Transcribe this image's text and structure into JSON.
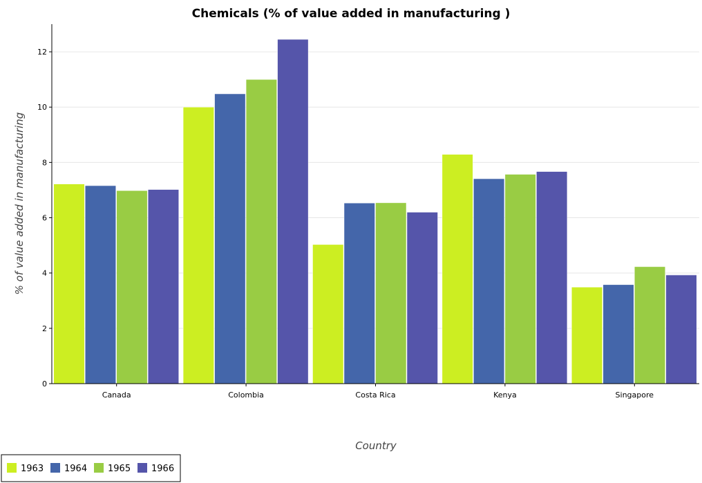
{
  "chart_data": {
    "type": "bar",
    "title": "Chemicals (% of value added in manufacturing )",
    "xlabel": "Country",
    "ylabel": "% of value added in manufacturing",
    "categories": [
      "Canada",
      "Colombia",
      "Costa Rica",
      "Kenya",
      "Singapore"
    ],
    "series": [
      {
        "name": "1963",
        "color": "#ccee22",
        "values": [
          7.22,
          10.0,
          5.03,
          8.29,
          3.49
        ]
      },
      {
        "name": "1964",
        "color": "#4466aa",
        "values": [
          7.16,
          10.48,
          6.53,
          7.41,
          3.58
        ]
      },
      {
        "name": "1965",
        "color": "#99cc44",
        "values": [
          6.98,
          11.0,
          6.54,
          7.57,
          4.23
        ]
      },
      {
        "name": "1966",
        "color": "#5555aa",
        "values": [
          7.02,
          12.45,
          6.2,
          7.67,
          3.93
        ]
      }
    ],
    "ylim": [
      0,
      13
    ],
    "yticks": [
      0,
      2,
      4,
      6,
      8,
      10,
      12
    ],
    "grid": true,
    "legend_position": "bottom-left"
  }
}
